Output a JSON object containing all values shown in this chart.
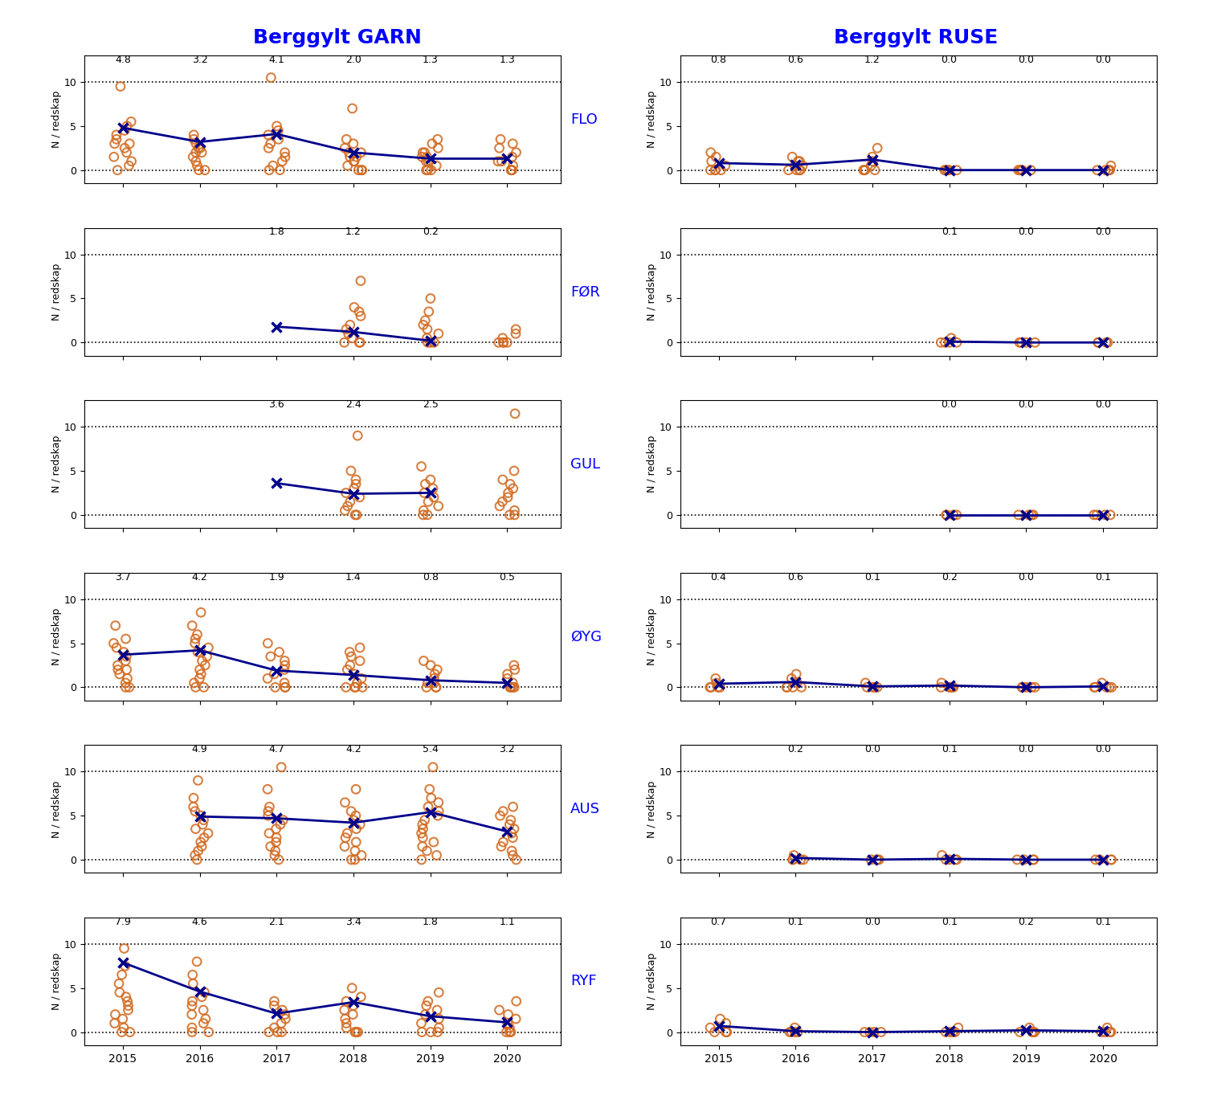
{
  "locations": [
    "FLO",
    "FØR",
    "GUL",
    "ØYG",
    "AUS",
    "RYF"
  ],
  "years": [
    2015,
    2016,
    2017,
    2018,
    2019,
    2020
  ],
  "garn_means": {
    "FLO": [
      4.8,
      3.2,
      4.1,
      2.0,
      1.3,
      1.3
    ],
    "FØR": [
      null,
      null,
      1.8,
      1.2,
      0.2,
      null
    ],
    "GUL": [
      null,
      null,
      3.6,
      2.4,
      2.5,
      null
    ],
    "ØYG": [
      3.7,
      4.2,
      1.9,
      1.4,
      0.8,
      0.5
    ],
    "AUS": [
      null,
      4.9,
      4.7,
      4.2,
      5.4,
      3.2
    ],
    "RYF": [
      7.9,
      4.6,
      2.1,
      3.4,
      1.8,
      1.1
    ]
  },
  "ruse_means": {
    "FLO": [
      0.8,
      0.6,
      1.2,
      0.0,
      0.0,
      0.0
    ],
    "FØR": [
      null,
      null,
      null,
      0.1,
      0.0,
      0.0
    ],
    "GUL": [
      null,
      null,
      null,
      0.0,
      0.0,
      0.0
    ],
    "ØYG": [
      0.4,
      0.6,
      0.1,
      0.2,
      0.0,
      0.1
    ],
    "AUS": [
      null,
      0.2,
      0.0,
      0.1,
      0.0,
      0.0
    ],
    "RYF": [
      0.7,
      0.1,
      0.0,
      0.1,
      0.2,
      0.1
    ]
  },
  "garn_scatter": {
    "FLO": {
      "2015": [
        9.5,
        5.5,
        5.0,
        4.5,
        4.0,
        3.5,
        3.0,
        3.0,
        2.5,
        2.0,
        1.5,
        1.0,
        0.5,
        0.0
      ],
      "2016": [
        4.0,
        3.5,
        3.0,
        2.5,
        2.5,
        2.0,
        2.0,
        1.5,
        1.0,
        0.5,
        0.0,
        0.0
      ],
      "2017": [
        10.5,
        5.0,
        4.5,
        4.0,
        3.5,
        3.0,
        2.5,
        2.0,
        1.5,
        1.0,
        0.5,
        0.0,
        0.0
      ],
      "2018": [
        7.0,
        3.5,
        3.0,
        2.5,
        2.0,
        2.0,
        1.5,
        1.5,
        1.0,
        1.0,
        0.5,
        0.0,
        0.0,
        0.0
      ],
      "2019": [
        3.5,
        3.0,
        2.5,
        2.0,
        2.0,
        1.5,
        1.5,
        1.0,
        1.0,
        0.5,
        0.0,
        0.0,
        0.0
      ],
      "2020": [
        3.5,
        3.0,
        2.5,
        2.0,
        1.5,
        1.0,
        1.0,
        0.5,
        0.0,
        0.0,
        0.0
      ]
    },
    "FØR": {
      "2018": [
        7.0,
        4.0,
        3.5,
        3.0,
        2.0,
        1.5,
        1.0,
        0.5,
        0.0,
        0.0,
        0.0
      ],
      "2019": [
        5.0,
        3.5,
        2.5,
        2.0,
        1.5,
        1.0,
        0.5,
        0.0,
        0.0,
        0.0
      ],
      "2020": [
        1.5,
        1.0,
        0.5,
        0.0,
        0.0,
        0.0,
        0.0
      ]
    },
    "GUL": {
      "2018": [
        9.0,
        5.0,
        4.0,
        3.5,
        3.0,
        2.5,
        2.0,
        1.5,
        1.0,
        0.5,
        0.0,
        0.0
      ],
      "2019": [
        5.5,
        4.0,
        3.5,
        3.0,
        2.5,
        2.0,
        1.5,
        1.0,
        0.5,
        0.0,
        0.0
      ],
      "2020": [
        11.5,
        5.0,
        4.0,
        3.5,
        3.0,
        2.5,
        2.0,
        1.5,
        1.0,
        0.5,
        0.0,
        0.0
      ]
    },
    "ØYG": {
      "2015": [
        7.0,
        5.5,
        5.0,
        4.5,
        4.0,
        3.5,
        3.0,
        2.5,
        2.0,
        2.0,
        1.5,
        1.0,
        0.5,
        0.0,
        0.0
      ],
      "2016": [
        8.5,
        7.0,
        6.0,
        5.5,
        5.0,
        4.5,
        4.0,
        3.5,
        3.0,
        2.5,
        2.0,
        1.5,
        1.0,
        0.5,
        0.0,
        0.0
      ],
      "2017": [
        5.0,
        4.0,
        3.5,
        3.0,
        2.5,
        2.0,
        1.5,
        1.0,
        0.5,
        0.0,
        0.0,
        0.0
      ],
      "2018": [
        4.5,
        4.0,
        3.5,
        3.0,
        2.5,
        2.0,
        1.5,
        1.0,
        0.5,
        0.0,
        0.0,
        0.0,
        0.0
      ],
      "2019": [
        3.0,
        2.5,
        2.0,
        1.5,
        1.0,
        0.5,
        0.5,
        0.0,
        0.0,
        0.0
      ],
      "2020": [
        2.5,
        2.0,
        1.5,
        1.0,
        0.5,
        0.0,
        0.0,
        0.0,
        0.0
      ]
    },
    "AUS": {
      "2016": [
        9.0,
        7.0,
        6.0,
        5.5,
        5.0,
        4.5,
        4.0,
        3.5,
        3.0,
        2.5,
        2.0,
        1.5,
        1.0,
        0.5,
        0.0
      ],
      "2017": [
        10.5,
        8.0,
        6.0,
        5.5,
        5.0,
        4.5,
        4.0,
        3.5,
        3.0,
        2.5,
        2.0,
        1.5,
        1.0,
        0.5,
        0.0
      ],
      "2018": [
        8.0,
        6.5,
        5.5,
        5.0,
        4.5,
        4.0,
        3.5,
        3.0,
        2.5,
        2.0,
        1.5,
        1.0,
        0.5,
        0.0,
        0.0
      ],
      "2019": [
        10.5,
        8.0,
        7.0,
        6.5,
        6.0,
        5.5,
        5.0,
        4.5,
        4.0,
        3.5,
        3.0,
        2.5,
        2.0,
        1.5,
        1.0,
        0.5,
        0.0
      ],
      "2020": [
        6.0,
        5.5,
        5.0,
        4.5,
        4.0,
        3.5,
        3.0,
        2.5,
        2.0,
        1.5,
        1.0,
        0.5,
        0.0
      ]
    },
    "RYF": {
      "2015": [
        9.5,
        7.5,
        6.5,
        5.5,
        4.5,
        4.0,
        3.5,
        3.0,
        2.5,
        2.0,
        1.5,
        1.0,
        0.5,
        0.0,
        0.0
      ],
      "2016": [
        8.0,
        6.5,
        5.5,
        4.5,
        4.0,
        3.5,
        3.0,
        2.5,
        2.0,
        1.5,
        1.0,
        0.5,
        0.0,
        0.0
      ],
      "2017": [
        3.5,
        3.0,
        2.5,
        2.0,
        1.5,
        1.0,
        0.5,
        0.0,
        0.0,
        0.0
      ],
      "2018": [
        5.0,
        4.0,
        3.5,
        3.0,
        2.5,
        2.0,
        1.5,
        1.0,
        0.5,
        0.0,
        0.0,
        0.0
      ],
      "2019": [
        4.5,
        3.5,
        3.0,
        2.5,
        2.0,
        1.5,
        1.0,
        0.5,
        0.0,
        0.0,
        0.0
      ],
      "2020": [
        3.5,
        2.5,
        2.0,
        1.5,
        1.0,
        0.5,
        0.0,
        0.0,
        0.0
      ]
    }
  },
  "ruse_scatter": {
    "FLO": {
      "2015": [
        2.0,
        1.5,
        1.0,
        0.5,
        0.0,
        0.0,
        0.0,
        0.0
      ],
      "2016": [
        1.5,
        1.0,
        1.0,
        0.5,
        0.5,
        0.0,
        0.0,
        0.0,
        0.0
      ],
      "2017": [
        2.5,
        1.5,
        1.0,
        0.5,
        0.0,
        0.0,
        0.0,
        0.0
      ],
      "2018": [
        0.0,
        0.0,
        0.0,
        0.0,
        0.0
      ],
      "2019": [
        0.0,
        0.0,
        0.0,
        0.0,
        0.0
      ],
      "2020": [
        0.5,
        0.0,
        0.0,
        0.0,
        0.0,
        0.0
      ]
    },
    "FØR": {
      "2018": [
        0.5,
        0.0,
        0.0,
        0.0,
        0.0
      ],
      "2019": [
        0.0,
        0.0,
        0.0,
        0.0
      ],
      "2020": [
        0.0,
        0.0,
        0.0,
        0.0
      ]
    },
    "GUL": {
      "2018": [
        0.0,
        0.0,
        0.0,
        0.0
      ],
      "2019": [
        0.0,
        0.0,
        0.0,
        0.0
      ],
      "2020": [
        0.0,
        0.0,
        0.0,
        0.0
      ]
    },
    "ØYG": {
      "2015": [
        1.0,
        0.5,
        0.0,
        0.0,
        0.0,
        0.0
      ],
      "2016": [
        1.5,
        1.0,
        0.5,
        0.0,
        0.0,
        0.0,
        0.0
      ],
      "2017": [
        0.5,
        0.0,
        0.0,
        0.0,
        0.0
      ],
      "2018": [
        0.5,
        0.0,
        0.0,
        0.0,
        0.0,
        0.0
      ],
      "2019": [
        0.0,
        0.0,
        0.0,
        0.0,
        0.0
      ],
      "2020": [
        0.5,
        0.0,
        0.0,
        0.0,
        0.0,
        0.0
      ]
    },
    "AUS": {
      "2016": [
        0.5,
        0.0,
        0.0,
        0.0,
        0.0
      ],
      "2017": [
        0.0,
        0.0,
        0.0,
        0.0
      ],
      "2018": [
        0.5,
        0.0,
        0.0,
        0.0,
        0.0
      ],
      "2019": [
        0.0,
        0.0,
        0.0,
        0.0
      ],
      "2020": [
        0.0,
        0.0,
        0.0,
        0.0
      ]
    },
    "RYF": {
      "2015": [
        1.5,
        1.0,
        0.5,
        0.0,
        0.0,
        0.0
      ],
      "2016": [
        0.5,
        0.0,
        0.0,
        0.0,
        0.0
      ],
      "2017": [
        0.0,
        0.0,
        0.0,
        0.0
      ],
      "2018": [
        0.5,
        0.0,
        0.0,
        0.0,
        0.0
      ],
      "2019": [
        0.5,
        0.0,
        0.0,
        0.0,
        0.0
      ],
      "2020": [
        0.5,
        0.0,
        0.0,
        0.0,
        0.0
      ]
    }
  },
  "title_garn": "Berggylt GARN",
  "title_ruse": "Berggylt RUSE",
  "ylabel": "N / redskap",
  "dot_color": "#D2691E",
  "line_color": "#00008B",
  "mean_color": "#00008B",
  "background": "#FFFFFF",
  "ylim": [
    -1.5,
    13
  ],
  "yticks": [
    0,
    5,
    10
  ],
  "dot_size": 60,
  "dot_alpha": 0.85,
  "jitter_scale": 0.12
}
